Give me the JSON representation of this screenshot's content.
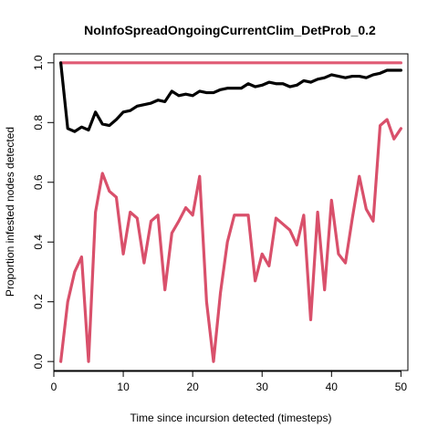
{
  "chart_data": {
    "type": "line",
    "title": "NoInfoSpreadOngoingCurrentClim_DetProb_0.2",
    "xlabel": "Time since incursion detected (timesteps)",
    "ylabel": "Proportion infested nodes detected",
    "xlim": [
      0,
      51
    ],
    "ylim": [
      -0.03,
      1.03
    ],
    "x_ticks": [
      0,
      10,
      20,
      30,
      40,
      50
    ],
    "y_ticks": [
      0.0,
      0.2,
      0.4,
      0.6,
      0.8,
      1.0
    ],
    "x_tick_labels": [
      "0",
      "10",
      "20",
      "30",
      "40",
      "50"
    ],
    "y_tick_labels": [
      "0.0",
      "0.2",
      "0.4",
      "0.6",
      "0.8",
      "1.0"
    ],
    "grid": false,
    "x": [
      1,
      2,
      3,
      4,
      5,
      6,
      7,
      8,
      9,
      10,
      11,
      12,
      13,
      14,
      15,
      16,
      17,
      18,
      19,
      20,
      21,
      22,
      23,
      24,
      25,
      26,
      27,
      28,
      29,
      30,
      31,
      32,
      33,
      34,
      35,
      36,
      37,
      38,
      39,
      40,
      41,
      42,
      43,
      44,
      45,
      46,
      47,
      48,
      49,
      50
    ],
    "series": [
      {
        "color": "#e05a74",
        "values": [
          1,
          1,
          1,
          1,
          1,
          1,
          1,
          1,
          1,
          1,
          1,
          1,
          1,
          1,
          1,
          1,
          1,
          1,
          1,
          1,
          1,
          1,
          1,
          1,
          1,
          1,
          1,
          1,
          1,
          1,
          1,
          1,
          1,
          1,
          1,
          1,
          1,
          1,
          1,
          1,
          1,
          1,
          1,
          1,
          1,
          1,
          1,
          1,
          1,
          1
        ]
      },
      {
        "color": "#000000",
        "values": [
          1.0,
          0.78,
          0.77,
          0.785,
          0.775,
          0.835,
          0.795,
          0.79,
          0.81,
          0.835,
          0.84,
          0.855,
          0.86,
          0.865,
          0.875,
          0.87,
          0.905,
          0.89,
          0.895,
          0.89,
          0.905,
          0.9,
          0.9,
          0.91,
          0.915,
          0.915,
          0.915,
          0.93,
          0.92,
          0.925,
          0.935,
          0.93,
          0.93,
          0.92,
          0.925,
          0.94,
          0.935,
          0.945,
          0.95,
          0.96,
          0.955,
          0.95,
          0.955,
          0.955,
          0.95,
          0.96,
          0.965,
          0.975,
          0.975,
          0.975
        ]
      },
      {
        "color": "#d9506b",
        "values": [
          0.0,
          0.2,
          0.3,
          0.35,
          0.0,
          0.5,
          0.63,
          0.57,
          0.55,
          0.36,
          0.5,
          0.48,
          0.33,
          0.47,
          0.49,
          0.24,
          0.43,
          0.47,
          0.515,
          0.49,
          0.62,
          0.2,
          0.0,
          0.23,
          0.4,
          0.49,
          0.49,
          0.49,
          0.27,
          0.36,
          0.32,
          0.48,
          0.46,
          0.44,
          0.39,
          0.49,
          0.14,
          0.5,
          0.24,
          0.54,
          0.36,
          0.33,
          0.48,
          0.62,
          0.51,
          0.47,
          0.79,
          0.81,
          0.745,
          0.78
        ]
      }
    ]
  }
}
